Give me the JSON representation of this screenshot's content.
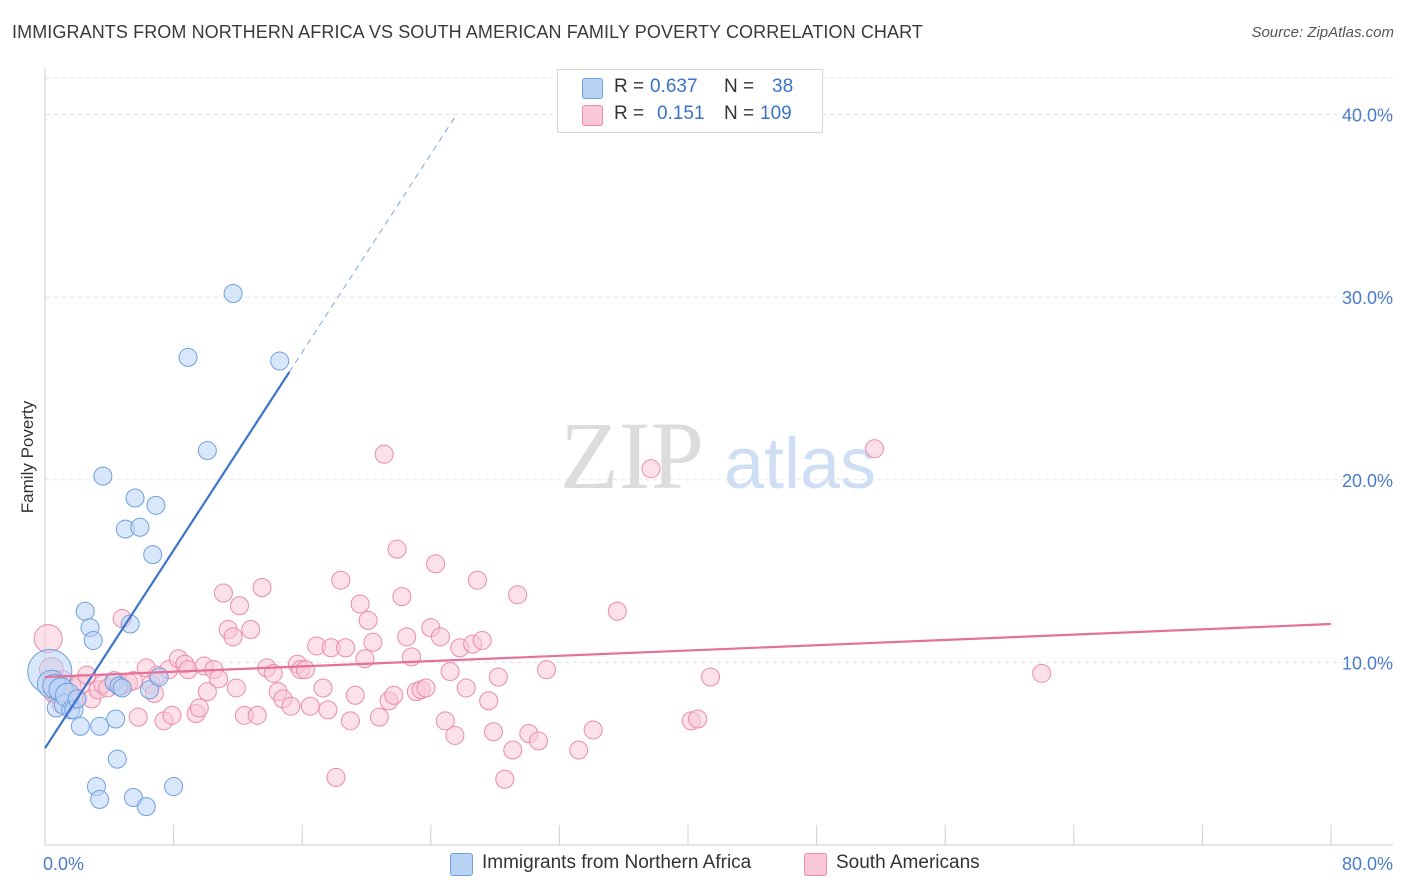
{
  "title": "IMMIGRANTS FROM NORTHERN AFRICA VS SOUTH AMERICAN FAMILY POVERTY CORRELATION CHART",
  "source": "Source: ZipAtlas.com",
  "watermark": {
    "zip": "ZIP",
    "atlas": "atlas"
  },
  "legend": {
    "rows": [
      {
        "r_label": "R =",
        "r_value": "0.637",
        "n_label": "N =",
        "n_value": "38",
        "fill": "#b9d3f5",
        "stroke": "#6f9fe0"
      },
      {
        "r_label": "R =",
        "r_value": "0.151",
        "n_label": "N =",
        "n_value": "109",
        "fill": "#f9c8d7",
        "stroke": "#ec8aa9"
      }
    ]
  },
  "bottom_legend": [
    {
      "label": "Immigrants from Northern Africa",
      "fill": "#b9d3f5",
      "stroke": "#6f9fe0"
    },
    {
      "label": "South Americans",
      "fill": "#f9c8d7",
      "stroke": "#ec8aa9"
    }
  ],
  "chart_data": {
    "type": "scatter",
    "title": "IMMIGRANTS FROM NORTHERN AFRICA VS SOUTH AMERICAN FAMILY POVERTY CORRELATION CHART",
    "xlabel": "",
    "ylabel": "Family Poverty",
    "xlim": [
      0,
      80
    ],
    "ylim": [
      0,
      42
    ],
    "x_tick_labels": [
      "0.0%",
      "80.0%"
    ],
    "y_ticks": [
      10,
      20,
      30,
      40
    ],
    "y_tick_labels": [
      "10.0%",
      "20.0%",
      "30.0%",
      "40.0%"
    ],
    "grid": "horizontal dashed",
    "series": [
      {
        "name": "Immigrants from Northern Africa",
        "color": "#6f9fe0",
        "fill": "#b9d3f5",
        "trend": {
          "x0": 0,
          "y0": 5.3,
          "x1": 15.2,
          "y1": 25.9,
          "dash_to_x": 25.5
        },
        "points": [
          [
            0.3,
            9.5,
            22
          ],
          [
            0.4,
            8.8,
            14
          ],
          [
            0.6,
            8.7,
            12
          ],
          [
            0.7,
            7.5,
            9
          ],
          [
            1.0,
            8.5,
            12
          ],
          [
            1.2,
            7.7,
            10
          ],
          [
            1.4,
            8.2,
            12
          ],
          [
            1.6,
            7.4,
            9
          ],
          [
            1.8,
            7.4,
            9
          ],
          [
            2.2,
            6.5,
            9
          ],
          [
            2.5,
            12.8,
            9
          ],
          [
            2.8,
            11.9,
            9
          ],
          [
            3.0,
            11.2,
            9
          ],
          [
            3.4,
            6.5,
            9
          ],
          [
            3.2,
            3.2,
            9
          ],
          [
            3.4,
            2.5,
            9
          ],
          [
            3.6,
            20.2,
            9
          ],
          [
            4.3,
            8.9,
            9
          ],
          [
            4.4,
            6.9,
            9
          ],
          [
            4.6,
            8.7,
            9
          ],
          [
            4.5,
            4.7,
            9
          ],
          [
            4.8,
            8.6,
            9
          ],
          [
            5.0,
            17.3,
            9
          ],
          [
            5.3,
            12.1,
            9
          ],
          [
            5.5,
            2.6,
            9
          ],
          [
            5.6,
            19.0,
            9
          ],
          [
            5.9,
            17.4,
            9
          ],
          [
            6.3,
            2.1,
            9
          ],
          [
            6.5,
            8.5,
            9
          ],
          [
            6.7,
            15.9,
            9
          ],
          [
            6.9,
            18.6,
            9
          ],
          [
            7.1,
            9.2,
            9
          ],
          [
            8.0,
            3.2,
            9
          ],
          [
            8.9,
            26.7,
            9
          ],
          [
            10.1,
            21.6,
            9
          ],
          [
            11.7,
            30.2,
            9
          ],
          [
            14.6,
            26.5,
            9
          ],
          [
            2.0,
            8.0,
            9
          ]
        ]
      },
      {
        "name": "South Americans",
        "color": "#ec8aa9",
        "fill": "#f9c8d7",
        "trend": {
          "x0": 0,
          "y0": 9.2,
          "x1": 80,
          "y1": 12.1
        },
        "points": [
          [
            0.2,
            11.3,
            14
          ],
          [
            0.4,
            9.6,
            12
          ],
          [
            0.6,
            8.9,
            12
          ],
          [
            0.8,
            8.4,
            12
          ],
          [
            1.1,
            9.0,
            10
          ],
          [
            1.4,
            8.3,
            10
          ],
          [
            1.6,
            8.7,
            10
          ],
          [
            1.9,
            8.0,
            10
          ],
          [
            2.2,
            8.8,
            10
          ],
          [
            2.6,
            9.3,
            9
          ],
          [
            2.9,
            8.0,
            9
          ],
          [
            3.3,
            8.5,
            9
          ],
          [
            3.6,
            8.8,
            9
          ],
          [
            3.9,
            8.6,
            9
          ],
          [
            4.3,
            9.0,
            9
          ],
          [
            4.7,
            8.7,
            9
          ],
          [
            4.8,
            12.4,
            9
          ],
          [
            5.2,
            8.9,
            9
          ],
          [
            5.5,
            9.0,
            9
          ],
          [
            5.8,
            7.0,
            9
          ],
          [
            6.3,
            9.7,
            9
          ],
          [
            6.6,
            8.8,
            9
          ],
          [
            6.8,
            8.3,
            9
          ],
          [
            7.0,
            9.3,
            9
          ],
          [
            7.4,
            6.8,
            9
          ],
          [
            7.7,
            9.6,
            9
          ],
          [
            7.9,
            7.1,
            9
          ],
          [
            8.3,
            10.2,
            9
          ],
          [
            8.7,
            9.9,
            9
          ],
          [
            8.9,
            9.6,
            9
          ],
          [
            9.4,
            7.2,
            9
          ],
          [
            9.6,
            7.5,
            9
          ],
          [
            9.9,
            9.8,
            9
          ],
          [
            10.1,
            8.4,
            9
          ],
          [
            10.5,
            9.6,
            9
          ],
          [
            10.8,
            9.1,
            9
          ],
          [
            11.1,
            13.8,
            9
          ],
          [
            11.4,
            11.8,
            9
          ],
          [
            11.7,
            11.4,
            9
          ],
          [
            11.9,
            8.6,
            9
          ],
          [
            12.1,
            13.1,
            9
          ],
          [
            12.4,
            7.1,
            9
          ],
          [
            12.8,
            11.8,
            9
          ],
          [
            13.2,
            7.1,
            9
          ],
          [
            13.5,
            14.1,
            9
          ],
          [
            13.8,
            9.7,
            9
          ],
          [
            14.2,
            9.4,
            9
          ],
          [
            14.5,
            8.4,
            9
          ],
          [
            14.8,
            8.0,
            9
          ],
          [
            15.3,
            7.6,
            9
          ],
          [
            15.7,
            9.9,
            9
          ],
          [
            15.9,
            9.6,
            9
          ],
          [
            16.2,
            9.6,
            9
          ],
          [
            16.5,
            7.6,
            9
          ],
          [
            16.9,
            10.9,
            9
          ],
          [
            17.3,
            8.6,
            9
          ],
          [
            17.6,
            7.4,
            9
          ],
          [
            17.8,
            10.8,
            9
          ],
          [
            18.1,
            3.7,
            9
          ],
          [
            18.4,
            14.5,
            9
          ],
          [
            18.7,
            10.8,
            9
          ],
          [
            19.0,
            6.8,
            9
          ],
          [
            19.3,
            8.2,
            9
          ],
          [
            19.6,
            13.2,
            9
          ],
          [
            19.9,
            10.2,
            9
          ],
          [
            20.1,
            12.3,
            9
          ],
          [
            20.4,
            11.1,
            9
          ],
          [
            20.8,
            7.0,
            9
          ],
          [
            21.1,
            21.4,
            9
          ],
          [
            21.4,
            7.9,
            9
          ],
          [
            21.7,
            8.2,
            9
          ],
          [
            21.9,
            16.2,
            9
          ],
          [
            22.2,
            13.6,
            9
          ],
          [
            22.5,
            11.4,
            9
          ],
          [
            22.8,
            10.3,
            9
          ],
          [
            23.1,
            8.4,
            9
          ],
          [
            23.4,
            8.5,
            9
          ],
          [
            23.7,
            8.6,
            9
          ],
          [
            24.0,
            11.9,
            9
          ],
          [
            24.3,
            15.4,
            9
          ],
          [
            24.6,
            11.4,
            9
          ],
          [
            24.9,
            6.8,
            9
          ],
          [
            25.2,
            9.5,
            9
          ],
          [
            25.5,
            6.0,
            9
          ],
          [
            25.8,
            10.8,
            9
          ],
          [
            26.2,
            8.6,
            9
          ],
          [
            26.6,
            11.0,
            9
          ],
          [
            26.9,
            14.5,
            9
          ],
          [
            27.2,
            11.2,
            9
          ],
          [
            27.6,
            7.9,
            9
          ],
          [
            27.9,
            6.2,
            9
          ],
          [
            28.2,
            9.2,
            9
          ],
          [
            28.6,
            3.6,
            9
          ],
          [
            29.1,
            5.2,
            9
          ],
          [
            29.4,
            13.7,
            9
          ],
          [
            30.1,
            6.1,
            9
          ],
          [
            30.7,
            5.7,
            9
          ],
          [
            31.2,
            9.6,
            9
          ],
          [
            33.2,
            5.2,
            9
          ],
          [
            34.1,
            6.3,
            9
          ],
          [
            35.6,
            12.8,
            9
          ],
          [
            37.7,
            20.6,
            9
          ],
          [
            40.2,
            6.8,
            9
          ],
          [
            40.6,
            6.9,
            9
          ],
          [
            41.4,
            9.2,
            9
          ],
          [
            51.6,
            21.7,
            9
          ],
          [
            62.0,
            9.4,
            9
          ],
          [
            0.5,
            8.3,
            9
          ],
          [
            1.0,
            7.7,
            9
          ]
        ]
      }
    ]
  }
}
